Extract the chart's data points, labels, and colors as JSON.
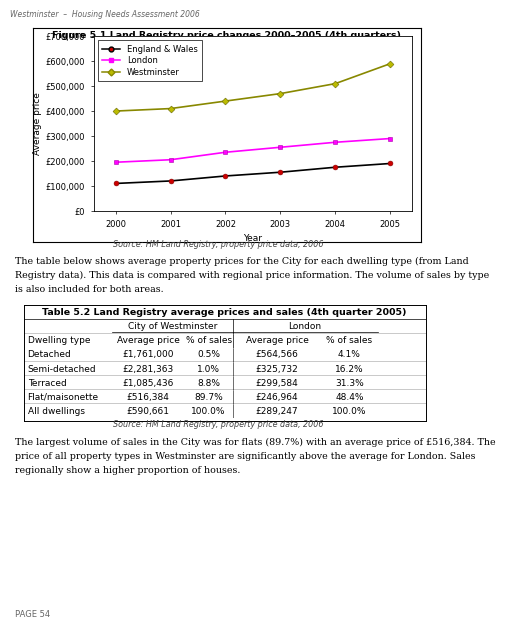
{
  "header_text": "Westminster  –  Housing Needs Assessment 2006",
  "footer_text": "PAGE 54",
  "chart_title": "Figure 5.1 Land Registry price changes 2000–2005 (4th quarters)",
  "chart_source": "Source: HM Land Registry, property price data, 2006",
  "years": [
    2000,
    2001,
    2002,
    2003,
    2004,
    2005
  ],
  "england_wales": [
    110000,
    120000,
    140000,
    155000,
    175000,
    190000
  ],
  "london": [
    195000,
    205000,
    235000,
    255000,
    275000,
    290000
  ],
  "westminster": [
    400000,
    410000,
    440000,
    470000,
    510000,
    590000
  ],
  "ylabel": "Average price",
  "xlabel": "Year",
  "ylim": [
    0,
    700000
  ],
  "yticks": [
    0,
    100000,
    200000,
    300000,
    400000,
    500000,
    600000,
    700000
  ],
  "ytick_labels": [
    "£0",
    "£100,000",
    "£200,000",
    "£300,000",
    "£400,000",
    "£500,000",
    "£600,000",
    "£700,000"
  ],
  "england_color": "#000000",
  "london_color": "#FF00FF",
  "westminster_color": "#BBBB00",
  "legend_labels": [
    "England & Wales",
    "London",
    "Westminster"
  ],
  "para1_lines": [
    "The table below shows average property prices for the City for each dwelling type (from Land",
    "Registry data). This data is compared with regional price information. The volume of sales by type",
    "is also included for both areas."
  ],
  "table_title": "Table 5.2 Land Registry average prices and sales (4th quarter 2005)",
  "table_source": "Source: HM Land Registry, property price data, 2006",
  "rows": [
    [
      "Detached",
      "£1,761,000",
      "0.5%",
      "£564,566",
      "4.1%"
    ],
    [
      "Semi-detached",
      "£2,281,363",
      "1.0%",
      "£325,732",
      "16.2%"
    ],
    [
      "Terraced",
      "£1,085,436",
      "8.8%",
      "£299,584",
      "31.3%"
    ],
    [
      "Flat/maisonette",
      "£516,384",
      "89.7%",
      "£246,964",
      "48.4%"
    ],
    [
      "All dwellings",
      "£590,661",
      "100.0%",
      "£289,247",
      "100.0%"
    ]
  ],
  "para2_lines": [
    "The largest volume of sales in the City was for flats (89.7%) with an average price of £516,384. The",
    "price of all property types in Westminster are significantly above the average for London. Sales",
    "regionally show a higher proportion of houses."
  ]
}
